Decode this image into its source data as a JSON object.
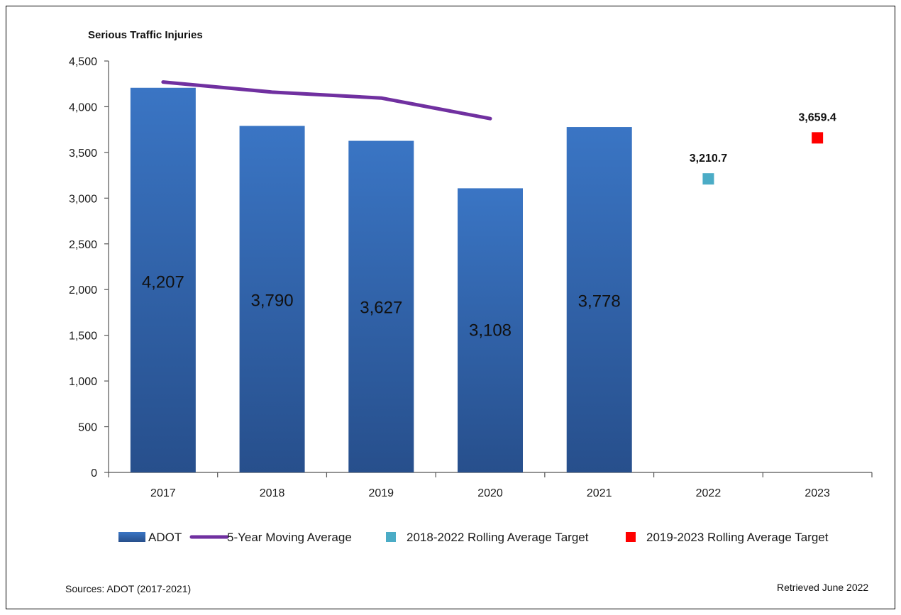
{
  "chart_data": {
    "type": "bar",
    "title": "Serious Traffic Injuries",
    "categories": [
      "2017",
      "2018",
      "2019",
      "2020",
      "2021",
      "2022",
      "2023"
    ],
    "ylim": [
      0,
      4500
    ],
    "yticks": [
      0,
      500,
      1000,
      1500,
      2000,
      2500,
      3000,
      3500,
      4000,
      4500
    ],
    "ytick_labels": [
      "0",
      "500",
      "1,000",
      "1,500",
      "2,000",
      "2,500",
      "3,000",
      "3,500",
      "4,000",
      "4,500"
    ],
    "grid": false,
    "legend_position": "bottom",
    "series": [
      {
        "name": "ADOT",
        "type": "bar",
        "color": "#2f63a8",
        "values": [
          4207,
          3790,
          3627,
          3108,
          3778,
          null,
          null
        ],
        "labels": [
          "4,207",
          "3,790",
          "3,627",
          "3,108",
          "3,778",
          "",
          ""
        ]
      },
      {
        "name": "5-Year Moving Average",
        "type": "line",
        "color": "#7030a0",
        "values": [
          4270,
          4160,
          4095,
          3870,
          null,
          null,
          null
        ]
      },
      {
        "name": "2018-2022 Rolling Average Target",
        "type": "scatter",
        "color": "#4bacc6",
        "values": [
          null,
          null,
          null,
          null,
          null,
          3210.7,
          null
        ],
        "labels": [
          "",
          "",
          "",
          "",
          "",
          "3,210.7",
          ""
        ]
      },
      {
        "name": "2019-2023 Rolling Average Target",
        "type": "scatter",
        "color": "#ff0000",
        "values": [
          null,
          null,
          null,
          null,
          null,
          null,
          3659.4
        ],
        "labels": [
          "",
          "",
          "",
          "",
          "",
          "",
          "3,659.4"
        ]
      }
    ]
  },
  "footer": {
    "sources": "Sources: ADOT (2017-2021)",
    "retrieved": "Retrieved June 2022"
  }
}
